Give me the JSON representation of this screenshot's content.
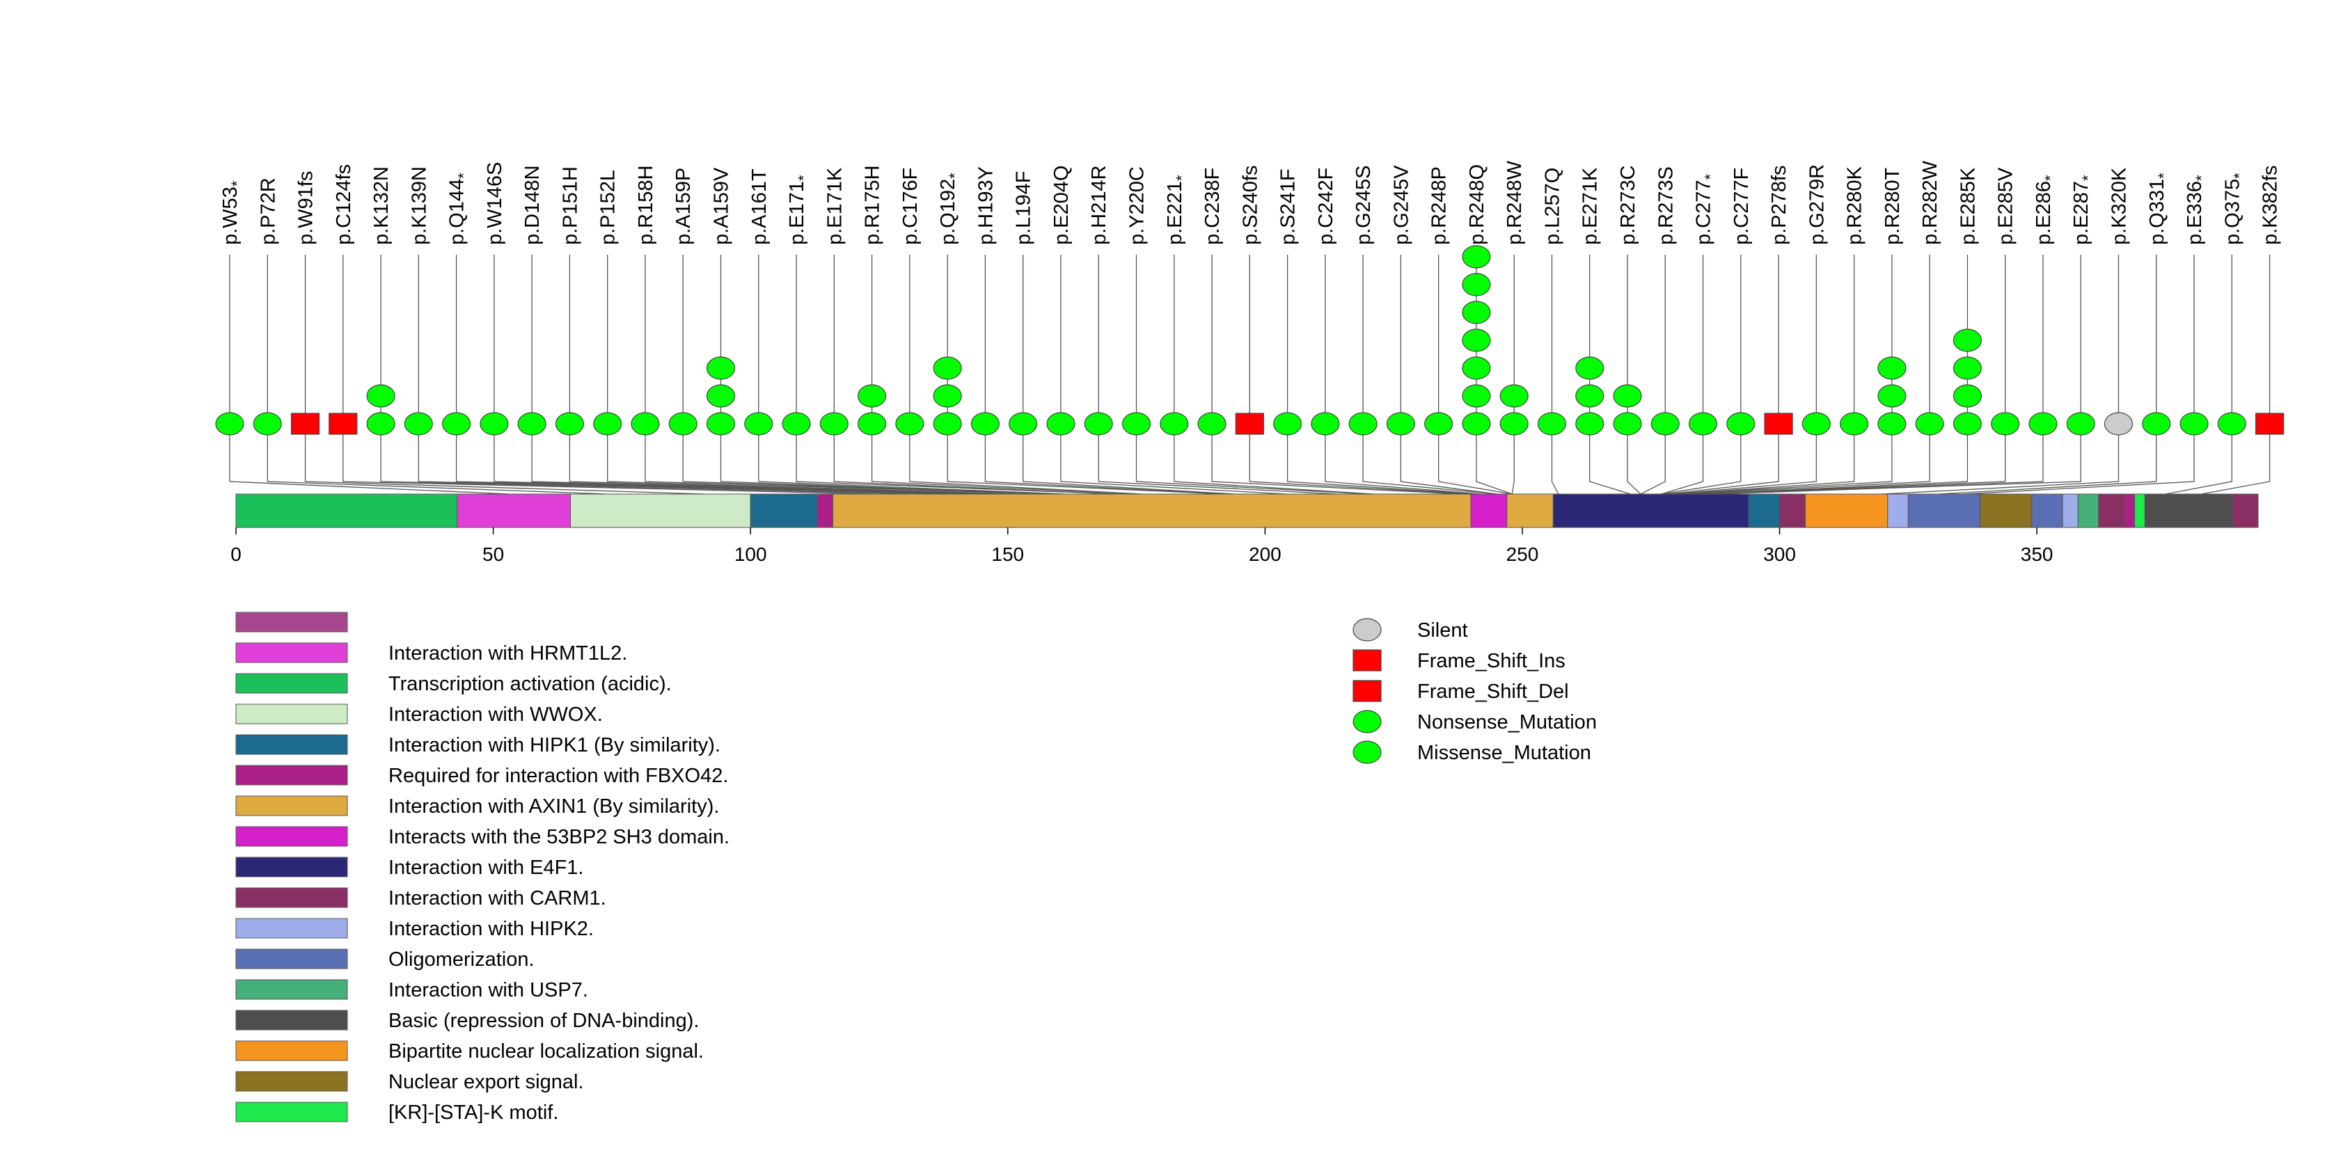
{
  "chart_data": {
    "type": "lollipop",
    "protein_length": 393,
    "x_ticks": [
      0,
      50,
      100,
      150,
      200,
      250,
      300,
      350
    ],
    "mutations": [
      {
        "label": "p.W53",
        "pos": 53,
        "type": "Nonsense_Mutation",
        "count": 1,
        "stop": true
      },
      {
        "label": "p.P72R",
        "pos": 72,
        "type": "Missense_Mutation",
        "count": 1,
        "stop": false
      },
      {
        "label": "p.W91fs",
        "pos": 91,
        "type": "Frame_Shift_Del",
        "count": 1,
        "stop": false
      },
      {
        "label": "p.C124fs",
        "pos": 124,
        "type": "Frame_Shift_Del",
        "count": 1,
        "stop": false
      },
      {
        "label": "p.K132N",
        "pos": 132,
        "type": "Missense_Mutation",
        "count": 2,
        "stop": false
      },
      {
        "label": "p.K139N",
        "pos": 139,
        "type": "Missense_Mutation",
        "count": 1,
        "stop": false
      },
      {
        "label": "p.Q144",
        "pos": 144,
        "type": "Nonsense_Mutation",
        "count": 1,
        "stop": true
      },
      {
        "label": "p.W146S",
        "pos": 146,
        "type": "Missense_Mutation",
        "count": 1,
        "stop": false
      },
      {
        "label": "p.D148N",
        "pos": 148,
        "type": "Missense_Mutation",
        "count": 1,
        "stop": false
      },
      {
        "label": "p.P151H",
        "pos": 151,
        "type": "Missense_Mutation",
        "count": 1,
        "stop": false
      },
      {
        "label": "p.P152L",
        "pos": 152,
        "type": "Missense_Mutation",
        "count": 1,
        "stop": false
      },
      {
        "label": "p.R158H",
        "pos": 158,
        "type": "Missense_Mutation",
        "count": 1,
        "stop": false
      },
      {
        "label": "p.A159P",
        "pos": 159,
        "type": "Missense_Mutation",
        "count": 1,
        "stop": false
      },
      {
        "label": "p.A159V",
        "pos": 159,
        "type": "Missense_Mutation",
        "count": 3,
        "stop": false
      },
      {
        "label": "p.A161T",
        "pos": 161,
        "type": "Missense_Mutation",
        "count": 1,
        "stop": false
      },
      {
        "label": "p.E171",
        "pos": 171,
        "type": "Nonsense_Mutation",
        "count": 1,
        "stop": true
      },
      {
        "label": "p.E171K",
        "pos": 171,
        "type": "Missense_Mutation",
        "count": 1,
        "stop": false
      },
      {
        "label": "p.R175H",
        "pos": 175,
        "type": "Missense_Mutation",
        "count": 2,
        "stop": false
      },
      {
        "label": "p.C176F",
        "pos": 176,
        "type": "Missense_Mutation",
        "count": 1,
        "stop": false
      },
      {
        "label": "p.Q192",
        "pos": 192,
        "type": "Nonsense_Mutation",
        "count": 3,
        "stop": true
      },
      {
        "label": "p.H193Y",
        "pos": 193,
        "type": "Missense_Mutation",
        "count": 1,
        "stop": false
      },
      {
        "label": "p.L194F",
        "pos": 194,
        "type": "Missense_Mutation",
        "count": 1,
        "stop": false
      },
      {
        "label": "p.E204Q",
        "pos": 204,
        "type": "Missense_Mutation",
        "count": 1,
        "stop": false
      },
      {
        "label": "p.H214R",
        "pos": 214,
        "type": "Missense_Mutation",
        "count": 1,
        "stop": false
      },
      {
        "label": "p.Y220C",
        "pos": 220,
        "type": "Missense_Mutation",
        "count": 1,
        "stop": false
      },
      {
        "label": "p.E221",
        "pos": 221,
        "type": "Nonsense_Mutation",
        "count": 1,
        "stop": true
      },
      {
        "label": "p.C238F",
        "pos": 238,
        "type": "Missense_Mutation",
        "count": 1,
        "stop": false
      },
      {
        "label": "p.S240fs",
        "pos": 240,
        "type": "Frame_Shift_Del",
        "count": 1,
        "stop": false
      },
      {
        "label": "p.S241F",
        "pos": 241,
        "type": "Missense_Mutation",
        "count": 1,
        "stop": false
      },
      {
        "label": "p.C242F",
        "pos": 242,
        "type": "Missense_Mutation",
        "count": 1,
        "stop": false
      },
      {
        "label": "p.G245S",
        "pos": 245,
        "type": "Missense_Mutation",
        "count": 1,
        "stop": false
      },
      {
        "label": "p.G245V",
        "pos": 245,
        "type": "Missense_Mutation",
        "count": 1,
        "stop": false
      },
      {
        "label": "p.R248P",
        "pos": 248,
        "type": "Missense_Mutation",
        "count": 1,
        "stop": false
      },
      {
        "label": "p.R248Q",
        "pos": 248,
        "type": "Missense_Mutation",
        "count": 7,
        "stop": false
      },
      {
        "label": "p.R248W",
        "pos": 248,
        "type": "Missense_Mutation",
        "count": 2,
        "stop": false
      },
      {
        "label": "p.L257Q",
        "pos": 257,
        "type": "Missense_Mutation",
        "count": 1,
        "stop": false
      },
      {
        "label": "p.E271K",
        "pos": 271,
        "type": "Missense_Mutation",
        "count": 3,
        "stop": false
      },
      {
        "label": "p.R273C",
        "pos": 273,
        "type": "Missense_Mutation",
        "count": 2,
        "stop": false
      },
      {
        "label": "p.R273S",
        "pos": 273,
        "type": "Missense_Mutation",
        "count": 1,
        "stop": false
      },
      {
        "label": "p.C277",
        "pos": 277,
        "type": "Nonsense_Mutation",
        "count": 1,
        "stop": true
      },
      {
        "label": "p.C277F",
        "pos": 277,
        "type": "Missense_Mutation",
        "count": 1,
        "stop": false
      },
      {
        "label": "p.P278fs",
        "pos": 278,
        "type": "Frame_Shift_Del",
        "count": 1,
        "stop": false
      },
      {
        "label": "p.G279R",
        "pos": 279,
        "type": "Missense_Mutation",
        "count": 1,
        "stop": false
      },
      {
        "label": "p.R280K",
        "pos": 280,
        "type": "Missense_Mutation",
        "count": 1,
        "stop": false
      },
      {
        "label": "p.R280T",
        "pos": 280,
        "type": "Missense_Mutation",
        "count": 3,
        "stop": false
      },
      {
        "label": "p.R282W",
        "pos": 282,
        "type": "Missense_Mutation",
        "count": 1,
        "stop": false
      },
      {
        "label": "p.E285K",
        "pos": 285,
        "type": "Missense_Mutation",
        "count": 4,
        "stop": false
      },
      {
        "label": "p.E285V",
        "pos": 285,
        "type": "Missense_Mutation",
        "count": 1,
        "stop": false
      },
      {
        "label": "p.E286",
        "pos": 286,
        "type": "Nonsense_Mutation",
        "count": 1,
        "stop": true
      },
      {
        "label": "p.E287",
        "pos": 287,
        "type": "Nonsense_Mutation",
        "count": 1,
        "stop": true
      },
      {
        "label": "p.K320K",
        "pos": 320,
        "type": "Silent",
        "count": 1,
        "stop": false
      },
      {
        "label": "p.Q331",
        "pos": 331,
        "type": "Nonsense_Mutation",
        "count": 1,
        "stop": true
      },
      {
        "label": "p.E336",
        "pos": 336,
        "type": "Nonsense_Mutation",
        "count": 1,
        "stop": true
      },
      {
        "label": "p.Q375",
        "pos": 375,
        "type": "Nonsense_Mutation",
        "count": 1,
        "stop": true
      },
      {
        "label": "p.K382fs",
        "pos": 382,
        "type": "Frame_Shift_Del",
        "count": 1,
        "stop": false
      }
    ],
    "domains": [
      {
        "start": 0,
        "end": 43,
        "color": "#1bc05a",
        "name": "Transcription activation (acidic)."
      },
      {
        "start": 43,
        "end": 65,
        "color": "#e040d8",
        "name": "Interaction with HRMT1L2."
      },
      {
        "start": 65,
        "end": 100,
        "color": "#cfeac6",
        "name": "Interaction with WWOX."
      },
      {
        "start": 100,
        "end": 113,
        "color": "#1c6b8f",
        "name": "Interaction with HIPK1 (By similarity)."
      },
      {
        "start": 113,
        "end": 116,
        "color": "#ab1f88",
        "name": "Required for interaction with FBXO42."
      },
      {
        "start": 116,
        "end": 240,
        "color": "#e0aa42",
        "name": "Interaction with AXIN1 (By similarity)."
      },
      {
        "start": 240,
        "end": 247,
        "color": "#d51fcb",
        "name": "Interacts with the 53BP2 SH3 domain."
      },
      {
        "start": 247,
        "end": 256,
        "color": "#e0aa42",
        "name": "Interaction with AXIN1 (By similarity)."
      },
      {
        "start": 256,
        "end": 294,
        "color": "#2c2878",
        "name": "Interaction with E4F1."
      },
      {
        "start": 294,
        "end": 300,
        "color": "#1c6b8f",
        "name": "Interaction with HIPK1 (By similarity)."
      },
      {
        "start": 300,
        "end": 305,
        "color": "#8a2f64",
        "name": "Interaction with CARM1."
      },
      {
        "start": 305,
        "end": 321,
        "color": "#f5951f",
        "name": "Bipartite nuclear localization signal."
      },
      {
        "start": 321,
        "end": 325,
        "color": "#9fadea",
        "name": "Interaction with HIPK2."
      },
      {
        "start": 325,
        "end": 339,
        "color": "#5b6fb5",
        "name": "Oligomerization."
      },
      {
        "start": 339,
        "end": 349,
        "color": "#8a7220",
        "name": "Nuclear export signal."
      },
      {
        "start": 349,
        "end": 355,
        "color": "#5b6fb5",
        "name": "Oligomerization."
      },
      {
        "start": 355,
        "end": 358,
        "color": "#9fadea",
        "name": "Interaction with HIPK2."
      },
      {
        "start": 358,
        "end": 362,
        "color": "#45b07a",
        "name": "Interaction with USP7."
      },
      {
        "start": 362,
        "end": 367,
        "color": "#8a2f64",
        "name": "Interaction with CARM1."
      },
      {
        "start": 367,
        "end": 369,
        "color": "#ab1f88",
        "name": "Required for interaction with FBXO42."
      },
      {
        "start": 369,
        "end": 371,
        "color": "#1ee94d",
        "name": "[KR]-[STA]-K motif."
      },
      {
        "start": 371,
        "end": 388,
        "color": "#4e4e4e",
        "name": "Basic (repression of DNA-binding)."
      },
      {
        "start": 388,
        "end": 393,
        "color": "#8a2f64",
        "name": "Interaction with CARM1."
      }
    ],
    "domain_legend": [
      {
        "label": "",
        "color": "#a6468f"
      },
      {
        "label": "Interaction with HRMT1L2.",
        "color": "#e040d8"
      },
      {
        "label": "Transcription activation (acidic).",
        "color": "#1bc05a"
      },
      {
        "label": "Interaction with WWOX.",
        "color": "#cfeac6"
      },
      {
        "label": "Interaction with HIPK1 (By similarity).",
        "color": "#1c6b8f"
      },
      {
        "label": "Required for interaction with FBXO42.",
        "color": "#ab1f88"
      },
      {
        "label": "Interaction with AXIN1 (By similarity).",
        "color": "#e0aa42"
      },
      {
        "label": "Interacts with the 53BP2 SH3 domain.",
        "color": "#d51fcb"
      },
      {
        "label": "Interaction with E4F1.",
        "color": "#2c2878"
      },
      {
        "label": "Interaction with CARM1.",
        "color": "#8a2f64"
      },
      {
        "label": "Interaction with HIPK2.",
        "color": "#9fadea"
      },
      {
        "label": "Oligomerization.",
        "color": "#5b6fb5"
      },
      {
        "label": "Interaction with USP7.",
        "color": "#45b07a"
      },
      {
        "label": "Basic (repression of DNA-binding).",
        "color": "#4e4e4e"
      },
      {
        "label": "Bipartite nuclear localization signal.",
        "color": "#f5951f"
      },
      {
        "label": "Nuclear export signal.",
        "color": "#8a7220"
      },
      {
        "label": "[KR]-[STA]-K motif.",
        "color": "#1ee94d"
      }
    ],
    "mutation_legend": [
      {
        "label": "Silent",
        "shape": "ellipse",
        "color": "#cccccc"
      },
      {
        "label": "Frame_Shift_Ins",
        "shape": "rect",
        "color": "#ff0000"
      },
      {
        "label": "Frame_Shift_Del",
        "shape": "rect",
        "color": "#ff0000"
      },
      {
        "label": "Nonsense_Mutation",
        "shape": "ellipse",
        "color": "#00ff00"
      },
      {
        "label": "Missense_Mutation",
        "shape": "ellipse",
        "color": "#00ff00"
      }
    ]
  }
}
